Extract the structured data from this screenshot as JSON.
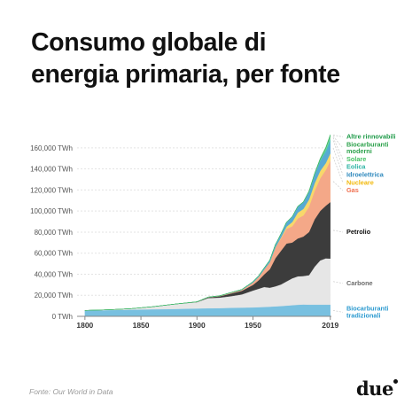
{
  "title_lines": [
    "Consumo globale di",
    "energia primaria, per fonte"
  ],
  "source": "Fonte: Our World in Data",
  "logo": "due",
  "chart_data": {
    "type": "area",
    "stacked": true,
    "x": [
      1800,
      1820,
      1840,
      1860,
      1880,
      1900,
      1910,
      1920,
      1930,
      1940,
      1950,
      1955,
      1960,
      1965,
      1970,
      1975,
      1980,
      1985,
      1990,
      1995,
      2000,
      2005,
      2010,
      2015,
      2019
    ],
    "x_ticks": [
      1800,
      1850,
      1900,
      1950,
      2019
    ],
    "y_ticks": [
      0,
      20000,
      40000,
      60000,
      80000,
      100000,
      120000,
      140000,
      160000
    ],
    "y_tick_labels": [
      "0 TWh",
      "20,000 TWh",
      "40,000 TWh",
      "60,000 TWh",
      "80,000 TWh",
      "100,000 TWh",
      "120,000 TWh",
      "140,000 TWh",
      "160,000 TWh"
    ],
    "xlim": [
      1793,
      2020
    ],
    "ylim": [
      0,
      170000
    ],
    "grid": true,
    "legend_position": "right",
    "series": [
      {
        "name": "Biocarburanti tradizionali",
        "color": "#78c0e0",
        "label_color": "#2e9bd0",
        "values": [
          5500,
          5900,
          6300,
          6700,
          7000,
          7500,
          7700,
          7800,
          8100,
          8300,
          8500,
          8700,
          8900,
          9200,
          9500,
          9800,
          10200,
          10600,
          11000,
          11300,
          11100,
          11100,
          11100,
          11100,
          11100
        ]
      },
      {
        "name": "Carbone",
        "color": "#e6e6e6",
        "label_color": "#6b6b6b",
        "values": [
          100,
          300,
          900,
          2400,
          4600,
          6000,
          9700,
          10000,
          11000,
          12500,
          16000,
          17500,
          19000,
          18000,
          19000,
          20500,
          23000,
          25500,
          27000,
          27000,
          28000,
          36000,
          42000,
          44000,
          43800
        ]
      },
      {
        "name": "Petrolio",
        "color": "#3c3c3c",
        "label_color": "#111111",
        "values": [
          0,
          0,
          0,
          0,
          0,
          200,
          600,
          1200,
          2500,
          3400,
          5400,
          8000,
          12000,
          17500,
          26700,
          32000,
          36000,
          34000,
          36000,
          37500,
          41000,
          45000,
          47000,
          50000,
          53600
        ]
      },
      {
        "name": "Gas",
        "color": "#f4a888",
        "label_color": "#f07050",
        "values": [
          0,
          0,
          0,
          0,
          0,
          60,
          150,
          250,
          600,
          800,
          2100,
          3000,
          4500,
          6500,
          10000,
          11700,
          14000,
          15400,
          19000,
          20000,
          24000,
          27000,
          31000,
          34000,
          39300
        ]
      },
      {
        "name": "Nucleare",
        "color": "#f7d86a",
        "label_color": "#f2b90c",
        "values": [
          0,
          0,
          0,
          0,
          0,
          0,
          0,
          0,
          0,
          0,
          0,
          0,
          0,
          100,
          200,
          900,
          2000,
          4000,
          5500,
          6200,
          6800,
          7200,
          7000,
          6500,
          7000
        ]
      },
      {
        "name": "Idroelettrica",
        "color": "#57aad3",
        "label_color": "#2f89bd",
        "values": [
          0,
          0,
          0,
          0,
          0,
          50,
          150,
          200,
          300,
          500,
          900,
          1200,
          1600,
          2100,
          2700,
          3500,
          4300,
          5000,
          5800,
          6500,
          7400,
          8300,
          9400,
          10200,
          10500
        ]
      },
      {
        "name": "Eolica",
        "color": "#4ac4b7",
        "label_color": "#2fb4a5",
        "values": [
          0,
          0,
          0,
          0,
          0,
          0,
          0,
          0,
          0,
          0,
          0,
          0,
          0,
          0,
          0,
          0,
          0,
          0,
          0,
          0,
          100,
          300,
          900,
          2300,
          3500
        ]
      },
      {
        "name": "Solare",
        "color": "#8fdc9a",
        "label_color": "#45c264",
        "values": [
          0,
          0,
          0,
          0,
          0,
          0,
          0,
          0,
          0,
          0,
          0,
          0,
          0,
          0,
          0,
          0,
          0,
          0,
          0,
          0,
          0,
          0,
          100,
          700,
          1800
        ]
      },
      {
        "name": "Biocarburanti moderni",
        "color": "#58c47c",
        "label_color": "#2da24c",
        "values": [
          0,
          0,
          0,
          0,
          0,
          0,
          0,
          0,
          0,
          0,
          0,
          0,
          0,
          0,
          0,
          0,
          0,
          0,
          0,
          0,
          200,
          400,
          800,
          1000,
          1100
        ]
      },
      {
        "name": "Altre rinnovabili",
        "color": "#36b561",
        "label_color": "#1f9b49",
        "values": [
          0,
          0,
          0,
          0,
          0,
          0,
          0,
          0,
          0,
          0,
          0,
          0,
          0,
          0,
          0,
          0,
          100,
          200,
          300,
          400,
          500,
          600,
          700,
          800,
          900
        ]
      }
    ]
  }
}
